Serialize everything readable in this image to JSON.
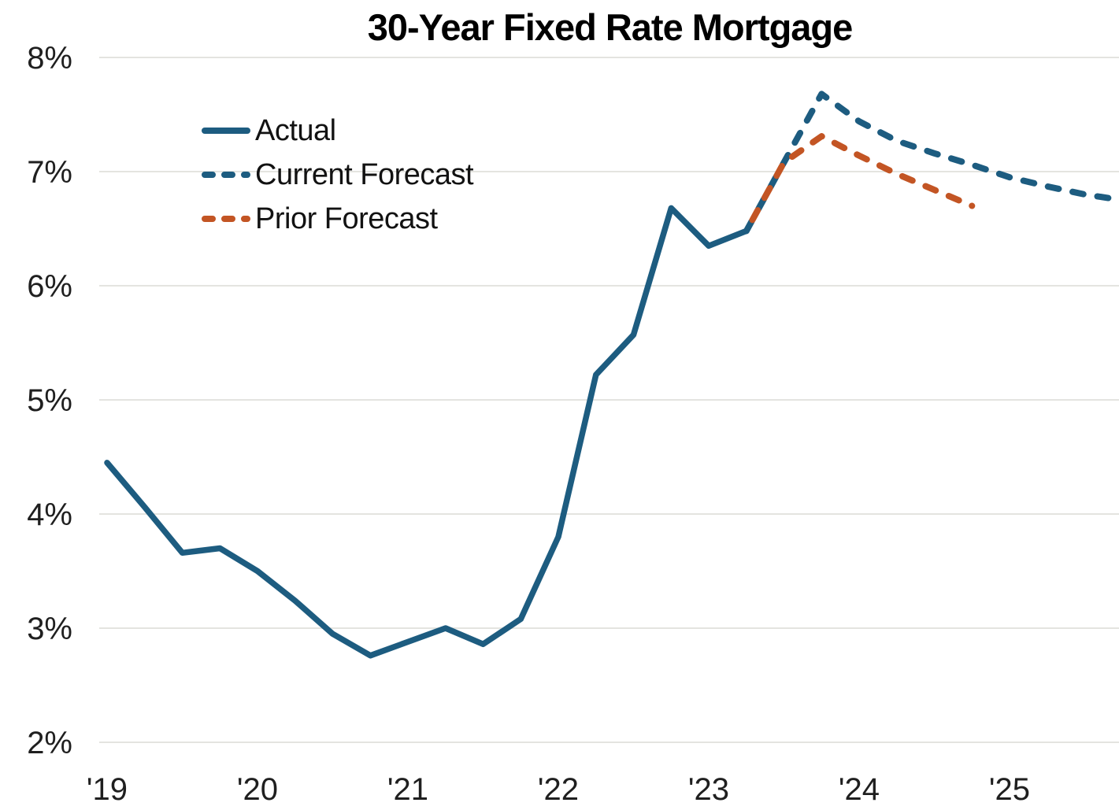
{
  "chart_data": {
    "type": "line",
    "title": "30-Year Fixed Rate Mortgage",
    "x_unit": "quarter",
    "categories": [
      "2019 Q1",
      "2019 Q2",
      "2019 Q3",
      "2019 Q4",
      "2020 Q1",
      "2020 Q2",
      "2020 Q3",
      "2020 Q4",
      "2021 Q1",
      "2021 Q2",
      "2021 Q3",
      "2021 Q4",
      "2022 Q1",
      "2022 Q2",
      "2022 Q3",
      "2022 Q4",
      "2023 Q1",
      "2023 Q2",
      "2023 Q3",
      "2023 Q4",
      "2024 Q1",
      "2024 Q2",
      "2024 Q3",
      "2024 Q4",
      "2025 Q1",
      "2025 Q2",
      "2025 Q3",
      "2025 Q4"
    ],
    "series": [
      {
        "name": "Actual",
        "color": "#1d5c80",
        "line_style": "solid",
        "values": [
          4.45,
          4.06,
          3.66,
          3.7,
          3.5,
          3.24,
          2.95,
          2.76,
          2.88,
          3.0,
          2.86,
          3.08,
          3.8,
          5.22,
          5.57,
          6.68,
          6.35,
          6.48,
          null,
          null,
          null,
          null,
          null,
          null,
          null,
          null,
          null,
          null
        ]
      },
      {
        "name": "Current Forecast",
        "color": "#1d5c80",
        "line_style": "dashed",
        "values": [
          null,
          null,
          null,
          null,
          null,
          null,
          null,
          null,
          null,
          null,
          null,
          null,
          null,
          null,
          null,
          null,
          null,
          6.48,
          7.08,
          7.68,
          7.44,
          7.27,
          7.16,
          7.06,
          6.95,
          6.87,
          6.8,
          6.75
        ]
      },
      {
        "name": "Prior Forecast",
        "color": "#c35524",
        "line_style": "dashed",
        "values": [
          null,
          null,
          null,
          null,
          null,
          null,
          null,
          null,
          null,
          null,
          null,
          null,
          null,
          null,
          null,
          null,
          null,
          6.48,
          7.08,
          7.31,
          7.14,
          6.98,
          6.84,
          6.7,
          null,
          null,
          null,
          null
        ]
      }
    ],
    "y_axis": {
      "min": 2,
      "max": 8,
      "ticks": [
        {
          "value": 8,
          "label": "8%"
        },
        {
          "value": 7,
          "label": "7%"
        },
        {
          "value": 6,
          "label": "6%"
        },
        {
          "value": 5,
          "label": "5%"
        },
        {
          "value": 4,
          "label": "4%"
        },
        {
          "value": 3,
          "label": "3%"
        },
        {
          "value": 2,
          "label": "2%"
        }
      ]
    },
    "x_axis": {
      "ticks": [
        {
          "category_index": 0,
          "label": "'19"
        },
        {
          "category_index": 4,
          "label": "'20"
        },
        {
          "category_index": 8,
          "label": "'21"
        },
        {
          "category_index": 12,
          "label": "'22"
        },
        {
          "category_index": 16,
          "label": "'23"
        },
        {
          "category_index": 20,
          "label": "'24"
        },
        {
          "category_index": 24,
          "label": "'25"
        }
      ]
    },
    "grid": "horizontal",
    "legend_position": "top-left-inside"
  },
  "colors": {
    "background": "#ffffff",
    "gridline": "#e4e4e0",
    "axis_text": "#1f1f1f",
    "title_text": "#000000"
  }
}
